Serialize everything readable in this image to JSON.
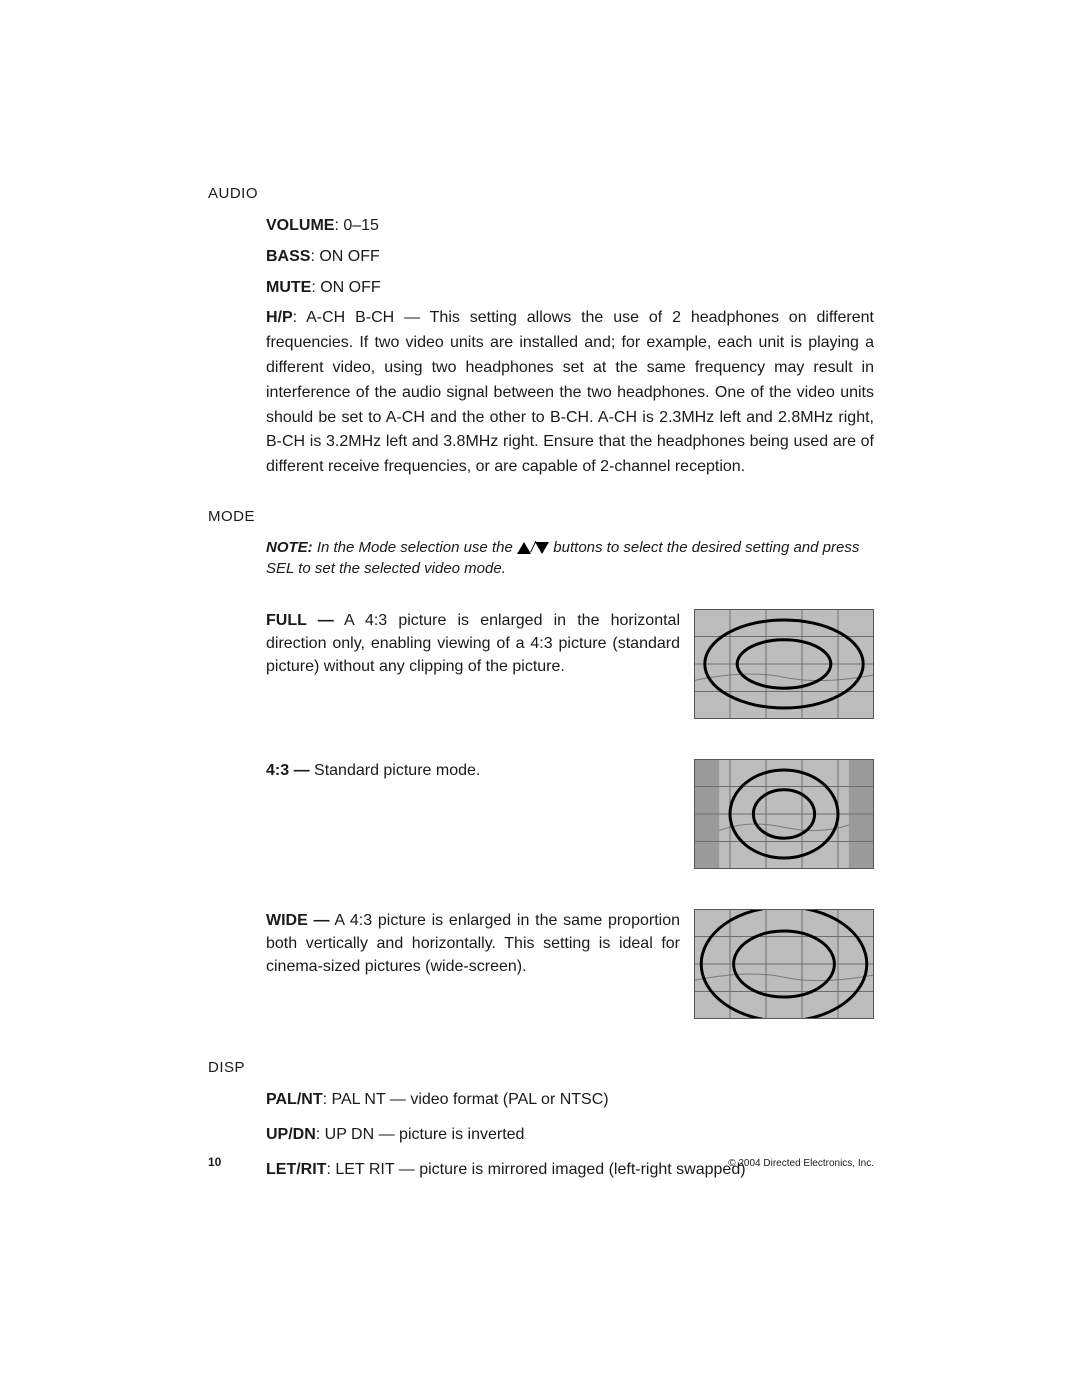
{
  "audio": {
    "label": "AUDIO",
    "volume": {
      "key": "VOLUME",
      "value": ": 0–15"
    },
    "bass": {
      "key": "BASS",
      "value": ": ON  OFF"
    },
    "mute": {
      "key": "MUTE",
      "value": ": ON  OFF"
    },
    "hp": {
      "key": "H/P",
      "value": ": A-CH   B-CH — This setting allows the use of 2 headphones on different frequencies. If two video units are installed and; for example, each unit is playing a different video, using two headphones set at the same frequency  may result in interference of the audio signal between the two headphones. One of the video units should be set to A-CH and the other to B-CH. A-CH is 2.3MHz left and 2.8MHz right, B-CH is 3.2MHz left and 3.8MHz right. Ensure that the headphones being used are of different receive frequencies, or are capable of 2-channel reception."
    }
  },
  "mode": {
    "label": "MODE",
    "note_label": "NOTE:",
    "note_pre": " In the Mode selection use the ",
    "note_post": " buttons to select the desired setting and press SEL to set the selected video mode.",
    "items": [
      {
        "key": "FULL —",
        "text": " A 4:3 picture is enlarged in the horizontal direction only, enabling viewing of a 4:3 picture (standard picture) without any clipping of the picture.",
        "diagram": {
          "type": "aspect-illustration",
          "variant": "full-stretch",
          "outer_bg": "#9a9a9a",
          "inner_bg": "#bdbdbd",
          "grid_color": "#6e6e6e",
          "line_color": "#000000",
          "cols": 5,
          "rows": 4,
          "ellipse_rx_outer": 0.44,
          "ellipse_ry_outer": 0.4,
          "ellipse_rx_inner": 0.26,
          "ellipse_ry_inner": 0.22,
          "frame_inset_x": 0.0,
          "frame_inset_y": 0.0
        }
      },
      {
        "key": "4:3 —",
        "text": " Standard picture mode.",
        "diagram": {
          "type": "aspect-illustration",
          "variant": "pillarbox",
          "outer_bg": "#9a9a9a",
          "inner_bg": "#bdbdbd",
          "grid_color": "#6e6e6e",
          "line_color": "#000000",
          "cols": 5,
          "rows": 4,
          "ellipse_rx_outer": 0.3,
          "ellipse_ry_outer": 0.4,
          "ellipse_rx_inner": 0.17,
          "ellipse_ry_inner": 0.22,
          "frame_inset_x": 0.14,
          "frame_inset_y": 0.0
        }
      },
      {
        "key": "WIDE —",
        "text": " A 4:3 picture is enlarged in the same proportion both vertically and horizontally. This setting is ideal for cinema-sized pictures (wide-screen).",
        "diagram": {
          "type": "aspect-illustration",
          "variant": "zoom",
          "outer_bg": "#9a9a9a",
          "inner_bg": "#bdbdbd",
          "grid_color": "#6e6e6e",
          "line_color": "#000000",
          "cols": 5,
          "rows": 4,
          "ellipse_rx_outer": 0.46,
          "ellipse_ry_outer": 0.52,
          "ellipse_rx_inner": 0.28,
          "ellipse_ry_inner": 0.3,
          "frame_inset_x": 0.0,
          "frame_inset_y": 0.0
        }
      }
    ]
  },
  "disp": {
    "label": "DISP",
    "lines": [
      {
        "key": "PAL/NT",
        "value": ": PAL   NT — video format (PAL or NTSC)"
      },
      {
        "key": "UP/DN",
        "value": ": UP  DN — picture is inverted"
      },
      {
        "key": "LET/RIT",
        "value": ": LET  RIT — picture is mirrored imaged (left-right swapped)"
      }
    ]
  },
  "footer": {
    "page": "10",
    "copyright": "© 2004 Directed Electronics, Inc."
  }
}
